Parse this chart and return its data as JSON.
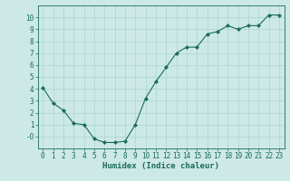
{
  "x": [
    0,
    1,
    2,
    3,
    4,
    5,
    6,
    7,
    8,
    9,
    10,
    11,
    12,
    13,
    14,
    15,
    16,
    17,
    18,
    19,
    20,
    21,
    22,
    23
  ],
  "y": [
    4.1,
    2.8,
    2.2,
    1.1,
    1.0,
    -0.2,
    -0.5,
    -0.5,
    -0.4,
    1.0,
    3.2,
    4.6,
    5.8,
    7.0,
    7.5,
    7.5,
    8.6,
    8.8,
    9.3,
    9.0,
    9.3,
    9.3,
    10.2,
    10.2
  ],
  "line_color": "#1a6b5a",
  "marker": "D",
  "marker_size": 2.0,
  "bg_color": "#cce9e5",
  "grid_color": "#aad4ce",
  "grid_minor_color": "#c0e2de",
  "xlabel": "Humidex (Indice chaleur)",
  "ylim": [
    -1,
    11
  ],
  "xlim": [
    -0.5,
    23.5
  ],
  "yticks": [
    0,
    1,
    2,
    3,
    4,
    5,
    6,
    7,
    8,
    9,
    10
  ],
  "xticks": [
    0,
    1,
    2,
    3,
    4,
    5,
    6,
    7,
    8,
    9,
    10,
    11,
    12,
    13,
    14,
    15,
    16,
    17,
    18,
    19,
    20,
    21,
    22,
    23
  ],
  "tick_color": "#1a6b5a",
  "label_color": "#1a6b5a",
  "xlabel_fontsize": 6.5,
  "tick_fontsize": 5.5,
  "ytick_label": [
    "-0",
    "1",
    "2",
    "3",
    "4",
    "5",
    "6",
    "7",
    "8",
    "9",
    "10"
  ]
}
